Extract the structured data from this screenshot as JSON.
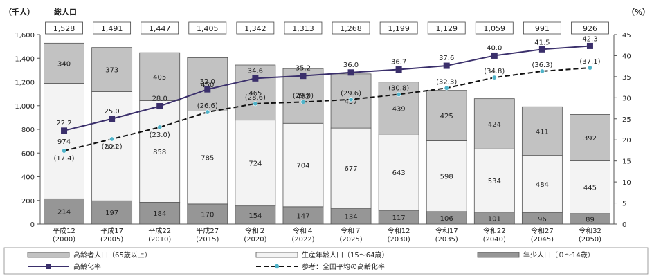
{
  "chart_data": {
    "type": "bar",
    "stacked": true,
    "title": "総人口",
    "y_left_unit": "（千人）",
    "y_right_unit": "（%）",
    "ylim_left": [
      0,
      1600
    ],
    "yticks_left": [
      "0",
      "200",
      "400",
      "600",
      "800",
      "1,000",
      "1,200",
      "1,400",
      "1,600"
    ],
    "ylim_right": [
      0,
      45
    ],
    "yticks_right": [
      "0",
      "5",
      "10",
      "15",
      "20",
      "25",
      "30",
      "35",
      "40",
      "45"
    ],
    "categories": [
      [
        "平成12",
        "(2000)"
      ],
      [
        "平成17",
        "(2005)"
      ],
      [
        "平成22",
        "(2010)"
      ],
      [
        "平成27",
        "(2015)"
      ],
      [
        "令和２",
        "(2020)"
      ],
      [
        "令和４",
        "(2022)"
      ],
      [
        "令和７",
        "(2025)"
      ],
      [
        "令和12",
        "(2030)"
      ],
      [
        "令和17",
        "(2035)"
      ],
      [
        "令和22",
        "(2040)"
      ],
      [
        "令和27",
        "(2045)"
      ],
      [
        "令和32",
        "(2050)"
      ]
    ],
    "totals": [
      "1,528",
      "1,491",
      "1,447",
      "1,405",
      "1,342",
      "1,313",
      "1,268",
      "1,199",
      "1,129",
      "1,059",
      "991",
      "926"
    ],
    "series": [
      {
        "name": "年少人口（０～14歳）",
        "color": "#969696",
        "values": [
          214,
          197,
          184,
          170,
          154,
          147,
          134,
          117,
          106,
          101,
          96,
          89
        ]
      },
      {
        "name": "生産年齢人口（15～64歳）",
        "color": "#f3f3f3",
        "values": [
          974,
          921,
          858,
          785,
          724,
          704,
          677,
          643,
          598,
          534,
          484,
          445
        ]
      },
      {
        "name": "高齢者人口（65歳以上）",
        "color": "#c2c2c2",
        "values": [
          340,
          373,
          405,
          450,
          465,
          462,
          457,
          439,
          425,
          424,
          411,
          392
        ]
      }
    ],
    "lines": [
      {
        "name": "高齢化率",
        "color": "#3a2f6b",
        "style": "solid",
        "values": [
          22.2,
          25.0,
          28.0,
          32.0,
          34.6,
          35.2,
          36.0,
          36.7,
          37.6,
          40.0,
          41.5,
          42.3
        ],
        "labels": [
          "22.2",
          "25.0",
          "28.0",
          "32.0",
          "34.6",
          "35.2",
          "36.0",
          "36.7",
          "37.6",
          "40.0",
          "41.5",
          "42.3"
        ]
      },
      {
        "name": "参考：全国平均の高齢化率",
        "color": "#111111",
        "marker_color": "#4fb3c9",
        "style": "dashed",
        "values": [
          17.4,
          20.2,
          23.0,
          26.6,
          28.6,
          29.0,
          29.6,
          30.8,
          32.3,
          34.8,
          36.3,
          37.1
        ],
        "labels": [
          "(17.4)",
          "(20.2)",
          "(23.0)",
          "(26.6)",
          "(28.6)",
          "(29.0)",
          "(29.6)",
          "(30.8)",
          "(32.3)",
          "(34.8)",
          "(36.3)",
          "(37.1)"
        ]
      }
    ],
    "legend_position": "bottom"
  }
}
